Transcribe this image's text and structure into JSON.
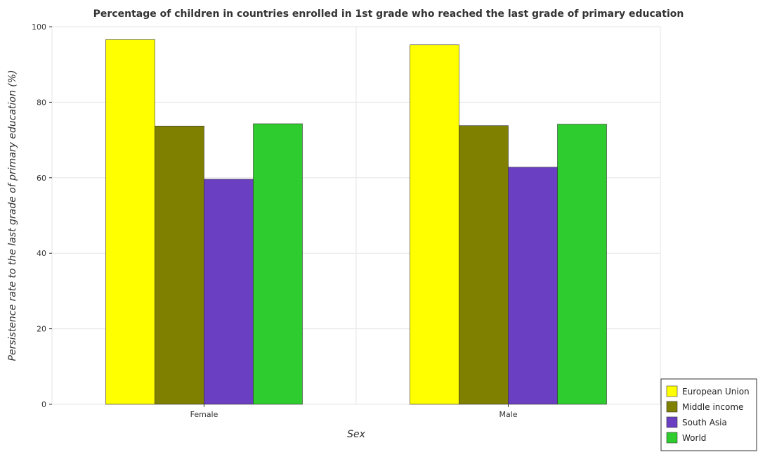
{
  "chart_data": {
    "type": "bar",
    "title": "Percentage of children in countries enrolled in 1st grade who reached the last grade of primary education",
    "xlabel": "Sex",
    "ylabel": "Persistence rate to the last grade of primary education (%)",
    "categories": [
      "Female",
      "Male"
    ],
    "ylim": [
      0,
      100
    ],
    "yticks": [
      0,
      20,
      40,
      60,
      80,
      100
    ],
    "grid": true,
    "legend_position": "bottom-right",
    "series": [
      {
        "name": "European Union",
        "color": "#ffff00",
        "values": [
          96.6,
          95.2
        ]
      },
      {
        "name": "Middle income",
        "color": "#808000",
        "values": [
          73.7,
          73.8
        ]
      },
      {
        "name": "South Asia",
        "color": "#6a3fc1",
        "values": [
          59.6,
          62.8
        ]
      },
      {
        "name": "World",
        "color": "#2fcc2f",
        "values": [
          74.3,
          74.2
        ]
      }
    ]
  }
}
